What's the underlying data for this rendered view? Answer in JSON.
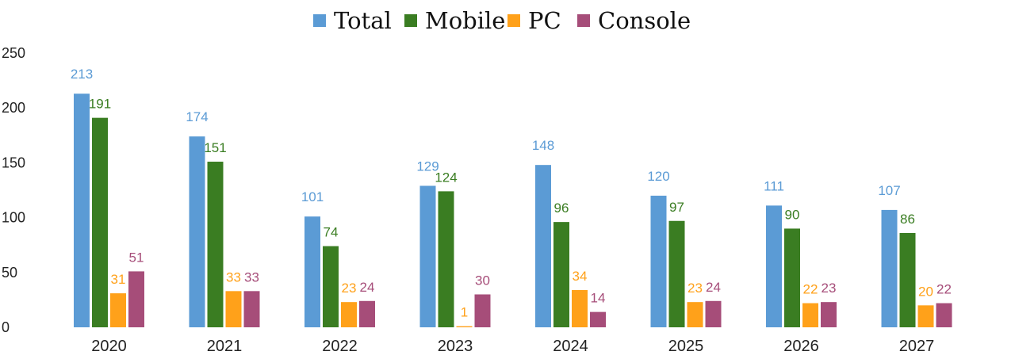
{
  "chart_data": {
    "type": "bar",
    "title": "",
    "xlabel": "",
    "ylabel": "",
    "categories": [
      "2020",
      "2021",
      "2022",
      "2023",
      "2024",
      "2025",
      "2026",
      "2027"
    ],
    "series": [
      {
        "name": "Total",
        "color": "#5b9bd5",
        "values": [
          213,
          174,
          101,
          129,
          148,
          120,
          111,
          107
        ]
      },
      {
        "name": "Mobile",
        "color": "#3a7d22",
        "values": [
          191,
          151,
          74,
          124,
          96,
          97,
          90,
          86
        ]
      },
      {
        "name": "PC",
        "color": "#ffa11a",
        "values": [
          31,
          33,
          23,
          1,
          34,
          23,
          22,
          20
        ]
      },
      {
        "name": "Console",
        "color": "#a64d79",
        "values": [
          51,
          33,
          24,
          30,
          14,
          24,
          23,
          22
        ]
      }
    ],
    "ylim": [
      0,
      250
    ],
    "yticks": [
      "0",
      "50",
      "100",
      "150",
      "200",
      "250"
    ],
    "grid": false,
    "legend_position": "top"
  }
}
